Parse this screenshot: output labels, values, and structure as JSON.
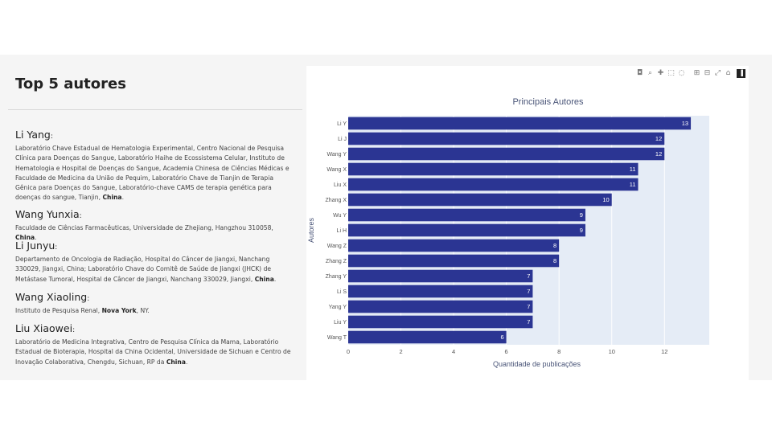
{
  "sidebar": {
    "title": "Top 5 autores",
    "authors": [
      {
        "name": "Li Yang",
        "affiliation": "Laboratório Chave Estadual de Hematologia Experimental, Centro Nacional de Pesquisa Clínica para Doenças do Sangue, Laboratório Haihe de Ecossistema Celular, Instituto de Hematologia e Hospital de Doenças do Sangue, Academia Chinesa de Ciências Médicas e Faculdade de Medicina da União de Pequim, Laboratório Chave de Tianjin de Terapia Gênica para Doenças do Sangue, Laboratório-chave CAMS de terapia genética para doenças do sangue, Tianjin,",
        "country": "China",
        "tail": "."
      },
      {
        "name": "Wang Yunxia",
        "affiliation": "Faculdade de Ciências Farmacêuticas, Universidade de Zhejiang, Hangzhou 310058,",
        "country": "China",
        "tail": "."
      },
      {
        "name": "Li Junyu",
        "affiliation": "Departamento de Oncologia de Radiação, Hospital do Câncer de Jiangxi, Nanchang 330029, Jiangxi, China; Laboratório Chave do Comitê de Saúde de Jiangxi (JHCK) de Metástase Tumoral, Hospital de Câncer de Jiangxi, Nanchang 330029, Jiangxi,",
        "country": "China",
        "tail": "."
      },
      {
        "name": "Wang Xiaoling",
        "affiliation": "Instituto de Pesquisa Renal,",
        "country": "Nova York",
        "tail": ", NY."
      },
      {
        "name": "Liu Xiaowei",
        "affiliation": "Laboratório de Medicina Integrativa, Centro de Pesquisa Clínica da Mama, Laboratório Estadual de Bioterapia, Hospital da China Ocidental, Universidade de Sichuan e Centro de Inovação Colaborativa, Chengdu, Sichuan, RP da",
        "country": "China",
        "tail": "."
      }
    ]
  },
  "modebar": {
    "icons": [
      "camera-icon",
      "zoom-icon",
      "pan-icon",
      "box-select-icon",
      "lasso-icon",
      "zoom-in-icon",
      "zoom-out-icon",
      "autoscale-icon",
      "reset-axes-icon",
      "plotly-logo-icon"
    ]
  },
  "chart_data": {
    "type": "bar",
    "orientation": "horizontal",
    "title": "Principais Autores",
    "xlabel": "Quantidade de publicações",
    "ylabel": "Autores",
    "categories": [
      "Li Y",
      "Li J",
      "Wang Y",
      "Wang X",
      "Liu X",
      "Zhang X",
      "Wu Y",
      "Li H",
      "Wang Z",
      "Zhang Z",
      "Zhang Y",
      "Li S",
      "Yang Y",
      "Liu Y",
      "Wang T"
    ],
    "values": [
      13,
      12,
      12,
      11,
      11,
      10,
      9,
      9,
      8,
      8,
      7,
      7,
      7,
      7,
      6
    ],
    "x_ticks": [
      0,
      2,
      4,
      6,
      8,
      10,
      12
    ],
    "xlim": [
      0,
      13.7
    ],
    "bar_color": "#2b3593",
    "plot_bg": "#e5ecf6",
    "grid": true,
    "data_labels": true
  }
}
